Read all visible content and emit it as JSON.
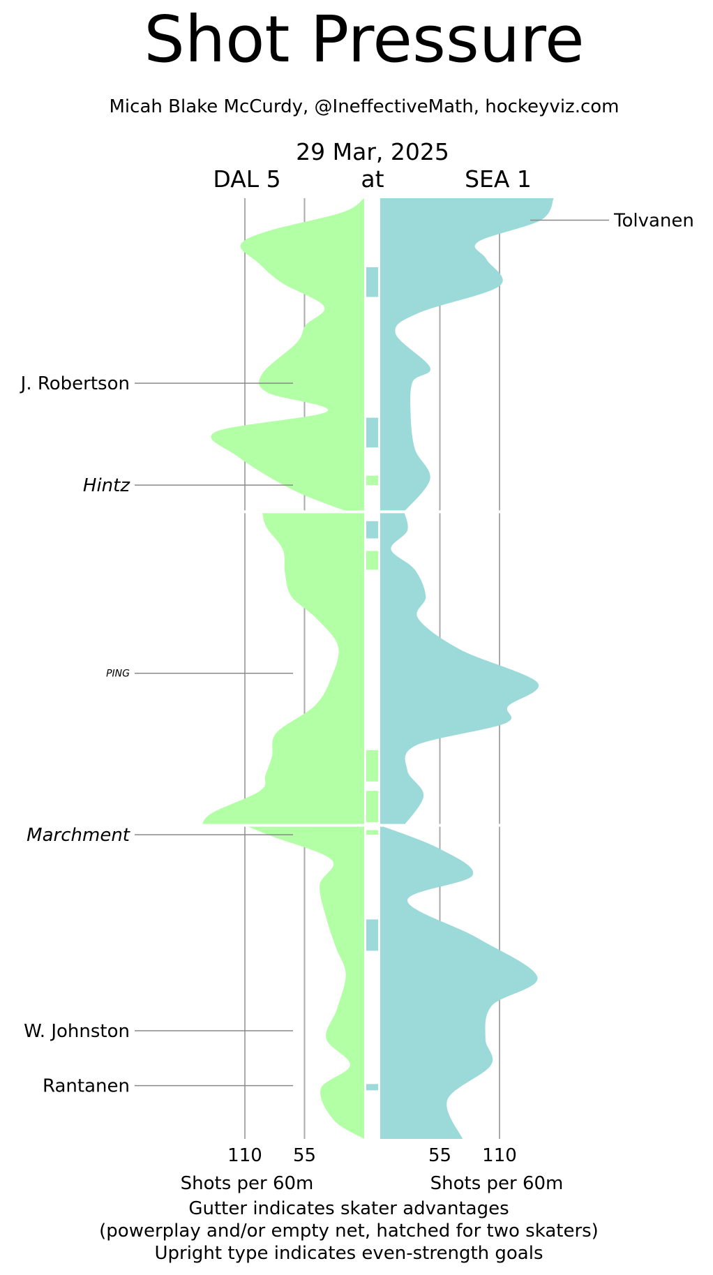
{
  "chart_data": {
    "type": "area",
    "title": "Shot Pressure",
    "subtitle": "Micah Blake McCurdy, @IneffectiveMath, hockeyviz.com",
    "date": "29 Mar, 2025",
    "at_label": "at",
    "away_team": {
      "label": "DAL 5",
      "color": "#b2ffa5"
    },
    "home_team": {
      "label": "SEA 1",
      "color": "#9cdada"
    },
    "x_axis": {
      "ticks": [
        110,
        55
      ],
      "ticks_right": [
        55,
        110
      ],
      "xlabel_left": "Shots per 60m",
      "xlabel_right": "Shots per 60m",
      "max": 165
    },
    "game_minutes": [
      0,
      60
    ],
    "period_breaks": [
      20,
      40
    ],
    "footnotes": [
      "Gutter indicates skater advantages",
      "(powerplay and/or empty net, hatched for two skaters)",
      "Upright type indicates even-strength goals"
    ],
    "series": [
      {
        "name": "DAL 5",
        "side": "left",
        "points": [
          [
            0,
            0
          ],
          [
            0.9,
            20
          ],
          [
            2.1,
            89
          ],
          [
            3.0,
            114
          ],
          [
            4.1,
            98
          ],
          [
            5.4,
            76
          ],
          [
            6.9,
            37
          ],
          [
            8.1,
            54
          ],
          [
            9.2,
            62
          ],
          [
            11.2,
            94
          ],
          [
            12.4,
            89
          ],
          [
            13.6,
            34
          ],
          [
            14.9,
            137
          ],
          [
            16.5,
            116
          ],
          [
            18.6,
            66
          ],
          [
            20,
            15
          ],
          [
            20,
            94
          ],
          [
            21,
            90
          ],
          [
            22.4,
            75
          ],
          [
            23.9,
            73
          ],
          [
            25.4,
            67
          ],
          [
            26.8,
            44
          ],
          [
            28.6,
            24
          ],
          [
            30.7,
            31
          ],
          [
            32.4,
            46
          ],
          [
            34.1,
            81
          ],
          [
            35.6,
            85
          ],
          [
            36.8,
            91
          ],
          [
            37.8,
            96
          ],
          [
            39.2,
            140
          ],
          [
            40,
            150
          ],
          [
            40,
            110
          ],
          [
            40.7,
            85
          ],
          [
            42.2,
            30
          ],
          [
            43.8,
            41
          ],
          [
            45.9,
            35
          ],
          [
            47.8,
            26
          ],
          [
            49.5,
            17
          ],
          [
            51.7,
            25
          ],
          [
            53.6,
            35
          ],
          [
            55.3,
            13
          ],
          [
            56.8,
            40
          ],
          [
            58.8,
            28
          ],
          [
            60,
            0
          ]
        ]
      },
      {
        "name": "SEA 1",
        "side": "right",
        "points": [
          [
            0,
            160
          ],
          [
            1.4,
            148
          ],
          [
            2.8,
            90
          ],
          [
            3.9,
            98
          ],
          [
            5.6,
            110
          ],
          [
            7.3,
            36
          ],
          [
            8.6,
            14
          ],
          [
            10.8,
            46
          ],
          [
            11.7,
            30
          ],
          [
            13.7,
            28
          ],
          [
            16.0,
            32
          ],
          [
            17.9,
            46
          ],
          [
            20,
            22
          ],
          [
            20,
            22
          ],
          [
            21.2,
            25
          ],
          [
            22.4,
            10
          ],
          [
            23.7,
            32
          ],
          [
            25.4,
            42
          ],
          [
            26.8,
            35
          ],
          [
            28.8,
            74
          ],
          [
            30.9,
            145
          ],
          [
            32.4,
            118
          ],
          [
            33.5,
            115
          ],
          [
            34.9,
            33
          ],
          [
            36.5,
            25
          ],
          [
            38.1,
            40
          ],
          [
            40,
            22
          ],
          [
            40,
            0
          ],
          [
            41.5,
            55
          ],
          [
            43.2,
            85
          ],
          [
            44.8,
            25
          ],
          [
            47.2,
            90
          ],
          [
            49.7,
            145
          ],
          [
            51.5,
            103
          ],
          [
            53.6,
            97
          ],
          [
            55.3,
            102
          ],
          [
            57.5,
            62
          ],
          [
            60,
            76
          ]
        ]
      }
    ],
    "gutter_bars": [
      {
        "start": 4.4,
        "end": 6.3,
        "team": "SEA 1"
      },
      {
        "start": 14.0,
        "end": 15.9,
        "team": "SEA 1"
      },
      {
        "start": 17.7,
        "end": 18.3,
        "team": "DAL 5"
      },
      {
        "start": 20.6,
        "end": 21.7,
        "team": "SEA 1"
      },
      {
        "start": 22.5,
        "end": 23.7,
        "team": "DAL 5"
      },
      {
        "start": 35.2,
        "end": 37.2,
        "team": "DAL 5"
      },
      {
        "start": 37.8,
        "end": 39.8,
        "team": "DAL 5"
      },
      {
        "start": 40.3,
        "end": 40.6,
        "team": "DAL 5"
      },
      {
        "start": 46.0,
        "end": 48.0,
        "team": "SEA 1"
      },
      {
        "start": 56.5,
        "end": 56.9,
        "team": "SEA 1"
      }
    ],
    "goals": [
      {
        "name": "Tolvanen",
        "minute": 1.4,
        "team": "SEA 1",
        "side": "right",
        "italic": false,
        "small": false
      },
      {
        "name": "J. Robertson",
        "minute": 11.8,
        "team": "DAL 5",
        "side": "left",
        "italic": false,
        "small": false
      },
      {
        "name": "Hintz",
        "minute": 18.3,
        "team": "DAL 5",
        "side": "left",
        "italic": true,
        "small": false
      },
      {
        "name": "PING",
        "minute": 30.3,
        "team": "DAL 5",
        "side": "left",
        "italic": true,
        "small": true
      },
      {
        "name": "Marchment",
        "minute": 40.6,
        "team": "DAL 5",
        "side": "left",
        "italic": true,
        "small": false
      },
      {
        "name": "W. Johnston",
        "minute": 53.1,
        "team": "DAL 5",
        "side": "left",
        "italic": false,
        "small": false
      },
      {
        "name": "Rantanen",
        "minute": 56.6,
        "team": "DAL 5",
        "side": "left",
        "italic": false,
        "small": false
      }
    ]
  }
}
